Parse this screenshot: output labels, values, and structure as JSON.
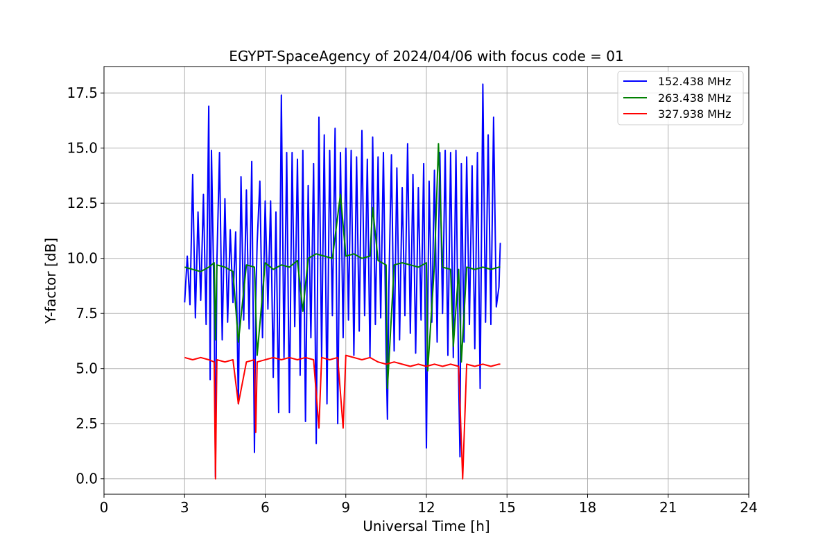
{
  "chart_data": {
    "type": "line",
    "title": "EGYPT-SpaceAgency of 2024/04/06 with focus code = 01",
    "xlabel": "Universal Time [h]",
    "ylabel": "Y-factor [dB]",
    "xlim": [
      0,
      24
    ],
    "ylim": [
      -0.7,
      18.7
    ],
    "xticks": [
      0,
      3,
      6,
      9,
      12,
      15,
      18,
      21,
      24
    ],
    "xtick_labels": [
      "0",
      "3",
      "6",
      "9",
      "12",
      "15",
      "18",
      "21",
      "24"
    ],
    "yticks": [
      0,
      2.5,
      5,
      7.5,
      10,
      12.5,
      15,
      17.5
    ],
    "ytick_labels": [
      "0.0",
      "2.5",
      "5.0",
      "7.5",
      "10.0",
      "12.5",
      "15.0",
      "17.5"
    ],
    "grid": true,
    "legend_position": "top-right",
    "series": [
      {
        "name": "152.438 MHz",
        "color": "#0000ff",
        "x": [
          3.0,
          3.1,
          3.2,
          3.3,
          3.4,
          3.5,
          3.6,
          3.7,
          3.8,
          3.9,
          3.95,
          4.0,
          4.1,
          4.15,
          4.2,
          4.3,
          4.4,
          4.5,
          4.6,
          4.7,
          4.8,
          4.9,
          5.0,
          5.1,
          5.2,
          5.3,
          5.4,
          5.5,
          5.6,
          5.65,
          5.7,
          5.8,
          5.9,
          6.0,
          6.1,
          6.2,
          6.3,
          6.4,
          6.5,
          6.6,
          6.7,
          6.8,
          6.9,
          7.0,
          7.1,
          7.2,
          7.3,
          7.4,
          7.5,
          7.6,
          7.7,
          7.8,
          7.9,
          8.0,
          8.1,
          8.2,
          8.3,
          8.4,
          8.5,
          8.6,
          8.7,
          8.8,
          8.9,
          9.0,
          9.1,
          9.2,
          9.3,
          9.4,
          9.5,
          9.6,
          9.7,
          9.8,
          9.9,
          10.0,
          10.1,
          10.2,
          10.3,
          10.4,
          10.5,
          10.55,
          10.6,
          10.7,
          10.8,
          10.9,
          11.0,
          11.1,
          11.2,
          11.3,
          11.4,
          11.5,
          11.6,
          11.7,
          11.8,
          11.9,
          12.0,
          12.1,
          12.2,
          12.3,
          12.4,
          12.5,
          12.6,
          12.7,
          12.8,
          12.9,
          13.0,
          13.1,
          13.2,
          13.25,
          13.3,
          13.4,
          13.5,
          13.6,
          13.7,
          13.8,
          13.9,
          14.0,
          14.1,
          14.2,
          14.3,
          14.4,
          14.5,
          14.6,
          14.7,
          14.75
        ],
        "y": [
          8.0,
          10.1,
          7.9,
          13.8,
          7.3,
          12.1,
          8.1,
          12.9,
          7.0,
          16.9,
          4.5,
          14.9,
          7.8,
          0.1,
          9.8,
          14.8,
          6.3,
          12.7,
          7.1,
          11.3,
          8.0,
          11.2,
          3.4,
          13.7,
          7.2,
          13.1,
          6.8,
          14.4,
          1.2,
          8.1,
          10.7,
          13.5,
          6.4,
          12.6,
          7.7,
          12.6,
          4.6,
          12.1,
          3.0,
          17.4,
          5.5,
          14.8,
          3.0,
          14.8,
          6.9,
          14.5,
          4.7,
          14.9,
          2.6,
          13.3,
          6.4,
          14.3,
          1.6,
          16.4,
          5.5,
          15.6,
          3.4,
          14.9,
          7.4,
          15.9,
          2.5,
          14.8,
          6.4,
          15.0,
          7.2,
          14.9,
          5.6,
          14.6,
          6.7,
          15.8,
          7.4,
          14.5,
          5.5,
          15.5,
          7.0,
          14.6,
          7.3,
          14.8,
          5.7,
          2.7,
          8.6,
          14.7,
          5.8,
          14.1,
          6.3,
          13.2,
          7.4,
          15.2,
          6.6,
          13.8,
          5.7,
          13.2,
          7.2,
          14.3,
          1.4,
          13.5,
          7.1,
          14.0,
          6.2,
          14.8,
          7.5,
          14.9,
          5.6,
          14.8,
          5.5,
          14.9,
          4.5,
          1.0,
          14.3,
          6.2,
          14.6,
          7.0,
          14.2,
          5.9,
          14.8,
          4.1,
          17.9,
          7.1,
          15.6,
          7.0,
          16.4,
          7.8,
          8.7,
          10.7
        ]
      },
      {
        "name": "263.438 MHz",
        "color": "#008000",
        "x": [
          3.0,
          3.3,
          3.6,
          3.9,
          4.1,
          4.15,
          4.2,
          4.5,
          4.8,
          5.0,
          5.3,
          5.6,
          5.7,
          6.0,
          6.3,
          6.6,
          6.9,
          7.2,
          7.4,
          7.6,
          7.9,
          8.2,
          8.5,
          8.8,
          9.0,
          9.3,
          9.6,
          9.9,
          10.0,
          10.2,
          10.5,
          10.55,
          10.8,
          11.1,
          11.4,
          11.7,
          12.0,
          12.05,
          12.3,
          12.45,
          12.6,
          12.9,
          13.0,
          13.2,
          13.3,
          13.5,
          13.8,
          14.1,
          14.4,
          14.7,
          14.75
        ],
        "y": [
          9.6,
          9.5,
          9.4,
          9.6,
          9.8,
          6.3,
          9.7,
          9.6,
          9.4,
          6.2,
          9.7,
          9.6,
          5.6,
          9.8,
          9.5,
          9.7,
          9.6,
          9.9,
          7.6,
          10.0,
          10.2,
          10.1,
          10.0,
          12.9,
          10.1,
          10.2,
          10.0,
          10.1,
          12.3,
          9.9,
          9.7,
          4.1,
          9.7,
          9.8,
          9.7,
          9.6,
          9.8,
          4.9,
          9.7,
          15.2,
          9.6,
          9.5,
          6.0,
          9.5,
          5.3,
          9.6,
          9.5,
          9.6,
          9.5,
          9.6,
          9.6
        ]
      },
      {
        "name": "327.938 MHz",
        "color": "#ff0000",
        "x": [
          3.0,
          3.3,
          3.6,
          3.9,
          4.1,
          4.15,
          4.2,
          4.5,
          4.8,
          5.0,
          5.3,
          5.6,
          5.65,
          5.7,
          6.0,
          6.3,
          6.6,
          6.9,
          7.2,
          7.5,
          7.8,
          8.0,
          8.1,
          8.4,
          8.7,
          8.9,
          9.0,
          9.3,
          9.6,
          9.9,
          10.2,
          10.5,
          10.8,
          11.1,
          11.4,
          11.7,
          12.0,
          12.3,
          12.6,
          12.9,
          13.2,
          13.35,
          13.5,
          13.8,
          14.1,
          14.4,
          14.7,
          14.75
        ],
        "y": [
          5.5,
          5.4,
          5.5,
          5.4,
          5.3,
          0.0,
          5.4,
          5.3,
          5.4,
          3.4,
          5.3,
          5.4,
          2.1,
          5.3,
          5.4,
          5.5,
          5.4,
          5.5,
          5.4,
          5.5,
          5.4,
          2.3,
          5.5,
          5.4,
          5.5,
          2.3,
          5.6,
          5.5,
          5.4,
          5.5,
          5.3,
          5.2,
          5.3,
          5.2,
          5.1,
          5.2,
          5.1,
          5.2,
          5.1,
          5.2,
          5.1,
          0.0,
          5.2,
          5.1,
          5.2,
          5.1,
          5.2,
          5.2
        ]
      }
    ]
  }
}
